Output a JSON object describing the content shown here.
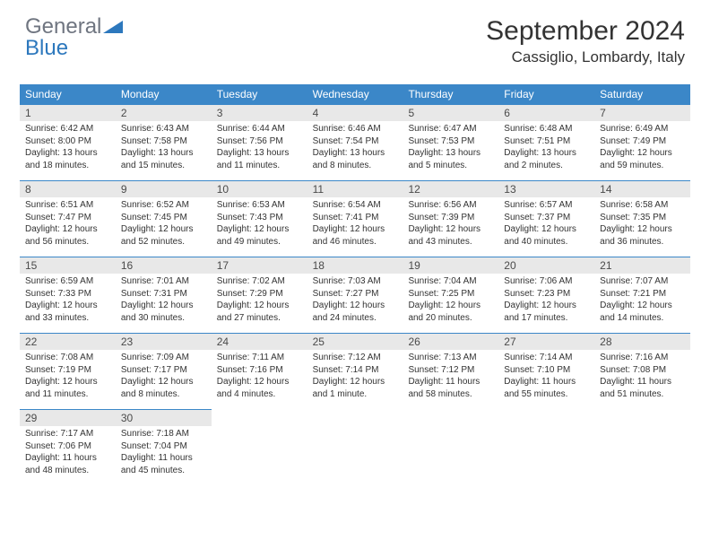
{
  "logo": {
    "word1": "General",
    "word2": "Blue"
  },
  "title": "September 2024",
  "location": "Cassiglio, Lombardy, Italy",
  "colors": {
    "header_bg": "#3b87c8",
    "header_text": "#ffffff",
    "daynum_bg": "#e8e8e8",
    "daynum_border": "#3b87c8",
    "body_text": "#333333",
    "logo_gray": "#6f7580",
    "logo_blue": "#2d78bd"
  },
  "days_of_week": [
    "Sunday",
    "Monday",
    "Tuesday",
    "Wednesday",
    "Thursday",
    "Friday",
    "Saturday"
  ],
  "weeks": [
    [
      {
        "n": "1",
        "sr": "Sunrise: 6:42 AM",
        "ss": "Sunset: 8:00 PM",
        "dl1": "Daylight: 13 hours",
        "dl2": "and 18 minutes."
      },
      {
        "n": "2",
        "sr": "Sunrise: 6:43 AM",
        "ss": "Sunset: 7:58 PM",
        "dl1": "Daylight: 13 hours",
        "dl2": "and 15 minutes."
      },
      {
        "n": "3",
        "sr": "Sunrise: 6:44 AM",
        "ss": "Sunset: 7:56 PM",
        "dl1": "Daylight: 13 hours",
        "dl2": "and 11 minutes."
      },
      {
        "n": "4",
        "sr": "Sunrise: 6:46 AM",
        "ss": "Sunset: 7:54 PM",
        "dl1": "Daylight: 13 hours",
        "dl2": "and 8 minutes."
      },
      {
        "n": "5",
        "sr": "Sunrise: 6:47 AM",
        "ss": "Sunset: 7:53 PM",
        "dl1": "Daylight: 13 hours",
        "dl2": "and 5 minutes."
      },
      {
        "n": "6",
        "sr": "Sunrise: 6:48 AM",
        "ss": "Sunset: 7:51 PM",
        "dl1": "Daylight: 13 hours",
        "dl2": "and 2 minutes."
      },
      {
        "n": "7",
        "sr": "Sunrise: 6:49 AM",
        "ss": "Sunset: 7:49 PM",
        "dl1": "Daylight: 12 hours",
        "dl2": "and 59 minutes."
      }
    ],
    [
      {
        "n": "8",
        "sr": "Sunrise: 6:51 AM",
        "ss": "Sunset: 7:47 PM",
        "dl1": "Daylight: 12 hours",
        "dl2": "and 56 minutes."
      },
      {
        "n": "9",
        "sr": "Sunrise: 6:52 AM",
        "ss": "Sunset: 7:45 PM",
        "dl1": "Daylight: 12 hours",
        "dl2": "and 52 minutes."
      },
      {
        "n": "10",
        "sr": "Sunrise: 6:53 AM",
        "ss": "Sunset: 7:43 PM",
        "dl1": "Daylight: 12 hours",
        "dl2": "and 49 minutes."
      },
      {
        "n": "11",
        "sr": "Sunrise: 6:54 AM",
        "ss": "Sunset: 7:41 PM",
        "dl1": "Daylight: 12 hours",
        "dl2": "and 46 minutes."
      },
      {
        "n": "12",
        "sr": "Sunrise: 6:56 AM",
        "ss": "Sunset: 7:39 PM",
        "dl1": "Daylight: 12 hours",
        "dl2": "and 43 minutes."
      },
      {
        "n": "13",
        "sr": "Sunrise: 6:57 AM",
        "ss": "Sunset: 7:37 PM",
        "dl1": "Daylight: 12 hours",
        "dl2": "and 40 minutes."
      },
      {
        "n": "14",
        "sr": "Sunrise: 6:58 AM",
        "ss": "Sunset: 7:35 PM",
        "dl1": "Daylight: 12 hours",
        "dl2": "and 36 minutes."
      }
    ],
    [
      {
        "n": "15",
        "sr": "Sunrise: 6:59 AM",
        "ss": "Sunset: 7:33 PM",
        "dl1": "Daylight: 12 hours",
        "dl2": "and 33 minutes."
      },
      {
        "n": "16",
        "sr": "Sunrise: 7:01 AM",
        "ss": "Sunset: 7:31 PM",
        "dl1": "Daylight: 12 hours",
        "dl2": "and 30 minutes."
      },
      {
        "n": "17",
        "sr": "Sunrise: 7:02 AM",
        "ss": "Sunset: 7:29 PM",
        "dl1": "Daylight: 12 hours",
        "dl2": "and 27 minutes."
      },
      {
        "n": "18",
        "sr": "Sunrise: 7:03 AM",
        "ss": "Sunset: 7:27 PM",
        "dl1": "Daylight: 12 hours",
        "dl2": "and 24 minutes."
      },
      {
        "n": "19",
        "sr": "Sunrise: 7:04 AM",
        "ss": "Sunset: 7:25 PM",
        "dl1": "Daylight: 12 hours",
        "dl2": "and 20 minutes."
      },
      {
        "n": "20",
        "sr": "Sunrise: 7:06 AM",
        "ss": "Sunset: 7:23 PM",
        "dl1": "Daylight: 12 hours",
        "dl2": "and 17 minutes."
      },
      {
        "n": "21",
        "sr": "Sunrise: 7:07 AM",
        "ss": "Sunset: 7:21 PM",
        "dl1": "Daylight: 12 hours",
        "dl2": "and 14 minutes."
      }
    ],
    [
      {
        "n": "22",
        "sr": "Sunrise: 7:08 AM",
        "ss": "Sunset: 7:19 PM",
        "dl1": "Daylight: 12 hours",
        "dl2": "and 11 minutes."
      },
      {
        "n": "23",
        "sr": "Sunrise: 7:09 AM",
        "ss": "Sunset: 7:17 PM",
        "dl1": "Daylight: 12 hours",
        "dl2": "and 8 minutes."
      },
      {
        "n": "24",
        "sr": "Sunrise: 7:11 AM",
        "ss": "Sunset: 7:16 PM",
        "dl1": "Daylight: 12 hours",
        "dl2": "and 4 minutes."
      },
      {
        "n": "25",
        "sr": "Sunrise: 7:12 AM",
        "ss": "Sunset: 7:14 PM",
        "dl1": "Daylight: 12 hours",
        "dl2": "and 1 minute."
      },
      {
        "n": "26",
        "sr": "Sunrise: 7:13 AM",
        "ss": "Sunset: 7:12 PM",
        "dl1": "Daylight: 11 hours",
        "dl2": "and 58 minutes."
      },
      {
        "n": "27",
        "sr": "Sunrise: 7:14 AM",
        "ss": "Sunset: 7:10 PM",
        "dl1": "Daylight: 11 hours",
        "dl2": "and 55 minutes."
      },
      {
        "n": "28",
        "sr": "Sunrise: 7:16 AM",
        "ss": "Sunset: 7:08 PM",
        "dl1": "Daylight: 11 hours",
        "dl2": "and 51 minutes."
      }
    ],
    [
      {
        "n": "29",
        "sr": "Sunrise: 7:17 AM",
        "ss": "Sunset: 7:06 PM",
        "dl1": "Daylight: 11 hours",
        "dl2": "and 48 minutes."
      },
      {
        "n": "30",
        "sr": "Sunrise: 7:18 AM",
        "ss": "Sunset: 7:04 PM",
        "dl1": "Daylight: 11 hours",
        "dl2": "and 45 minutes."
      },
      {
        "empty": true
      },
      {
        "empty": true
      },
      {
        "empty": true
      },
      {
        "empty": true
      },
      {
        "empty": true
      }
    ]
  ]
}
